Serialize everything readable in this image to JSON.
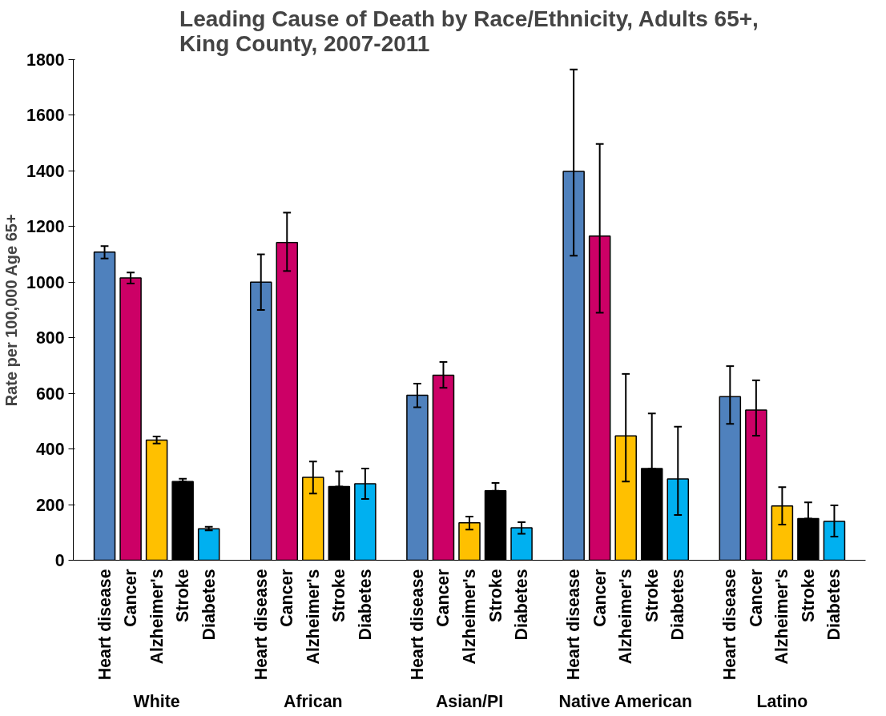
{
  "chart_data": {
    "type": "bar",
    "title": "Leading Cause of Death by Race/Ethnicity, Adults 65+,\nKing County, 2007-2011",
    "ylabel": "Rate per 100,000 Age 65+",
    "categories": [
      "White",
      "African",
      "Asian/PI",
      "Native American",
      "Latino"
    ],
    "series": [
      {
        "name": "Heart disease",
        "color": "#4f81bd",
        "values": [
          1108,
          1000,
          593,
          1398,
          588
        ],
        "errors": [
          [
            1085,
            1130
          ],
          [
            900,
            1100
          ],
          [
            550,
            635
          ],
          [
            1095,
            1765
          ],
          [
            490,
            698
          ]
        ]
      },
      {
        "name": "Cancer",
        "color": "#cc0066",
        "values": [
          1015,
          1143,
          665,
          1166,
          540
        ],
        "errors": [
          [
            995,
            1035
          ],
          [
            1040,
            1250
          ],
          [
            620,
            713
          ],
          [
            890,
            1497
          ],
          [
            448,
            647
          ]
        ]
      },
      {
        "name": "Alzheimer's",
        "color": "#ffc000",
        "values": [
          432,
          298,
          135,
          447,
          195
        ],
        "errors": [
          [
            420,
            445
          ],
          [
            240,
            355
          ],
          [
            110,
            157
          ],
          [
            283,
            670
          ],
          [
            128,
            263
          ]
        ]
      },
      {
        "name": "Stroke",
        "color": "#000000",
        "values": [
          283,
          265,
          250,
          330,
          150
        ],
        "errors": [
          [
            283,
            293
          ],
          [
            265,
            320
          ],
          [
            250,
            278
          ],
          [
            330,
            528
          ],
          [
            150,
            208
          ]
        ]
      },
      {
        "name": "Diabetes",
        "color": "#00b0f0",
        "values": [
          113,
          275,
          117,
          292,
          140
        ],
        "errors": [
          [
            107,
            120
          ],
          [
            220,
            330
          ],
          [
            95,
            137
          ],
          [
            163,
            480
          ],
          [
            85,
            197
          ]
        ]
      }
    ],
    "ylim": [
      0,
      1800
    ],
    "yticks": [
      0,
      200,
      400,
      600,
      800,
      1000,
      1200,
      1400,
      1600,
      1800
    ],
    "grid": false
  }
}
